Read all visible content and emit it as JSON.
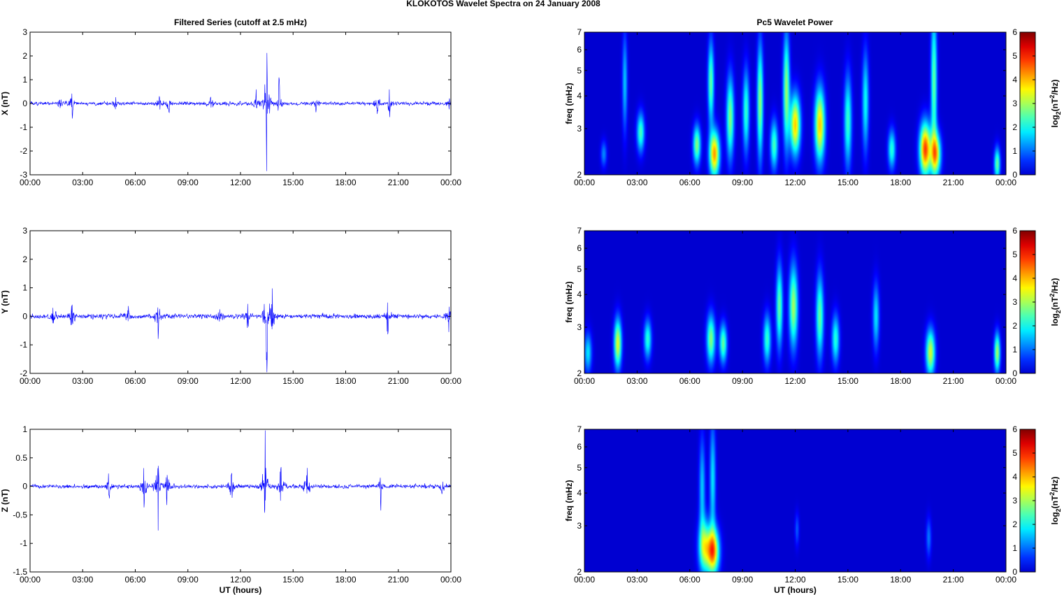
{
  "figure_title": "KLOKOTOS Wavelet Spectra on 24 January   2008",
  "left_title": "Filtered Series (cutoff at 2.5 mHz)",
  "right_title": "Pc5 Wavelet Power",
  "time_ticks": [
    "00:00",
    "03:00",
    "06:00",
    "09:00",
    "12:00",
    "15:00",
    "18:00",
    "21:00",
    "00:00"
  ],
  "xlabel": "UT (hours)",
  "colors": {
    "trace": "#0000ff",
    "axes": "#000000"
  },
  "chart_data": [
    {
      "type": "line",
      "title": "Filtered Series (cutoff at 2.5 mHz)",
      "ylabel": "X (nT)",
      "ylim": [
        -3,
        3
      ],
      "yticks": [
        "3",
        "2",
        "1",
        "0",
        "-1",
        "-2",
        "-3"
      ],
      "xlim_hours": [
        0,
        24
      ],
      "series": [
        {
          "color": "#0000ff"
        }
      ],
      "noise_amplitude": 0.07,
      "events": [
        {
          "t": 1.7,
          "amp": 0.45
        },
        {
          "t": 2.4,
          "amp": 0.75
        },
        {
          "t": 4.9,
          "amp": 0.3
        },
        {
          "t": 7.4,
          "amp": 0.45
        },
        {
          "t": 7.9,
          "amp": 0.4
        },
        {
          "t": 10.3,
          "amp": 0.4
        },
        {
          "t": 12.9,
          "amp": 0.6
        },
        {
          "t": 13.5,
          "amp": 2.8
        },
        {
          "t": 14.2,
          "amp": 1.0
        },
        {
          "t": 16.3,
          "amp": 0.4
        },
        {
          "t": 19.8,
          "amp": 0.4
        },
        {
          "t": 20.5,
          "amp": 0.85
        },
        {
          "t": 23.9,
          "amp": 0.35
        }
      ]
    },
    {
      "type": "line",
      "ylabel": "Y (nT)",
      "ylim": [
        -2,
        3
      ],
      "yticks": [
        "3",
        "2",
        "1",
        "0",
        "-1",
        "-2"
      ],
      "xlim_hours": [
        0,
        24
      ],
      "series": [
        {
          "color": "#0000ff"
        }
      ],
      "noise_amplitude": 0.08,
      "events": [
        {
          "t": 1.3,
          "amp": 0.45
        },
        {
          "t": 2.4,
          "amp": 0.7
        },
        {
          "t": 5.6,
          "amp": 0.3
        },
        {
          "t": 7.3,
          "amp": 0.65
        },
        {
          "t": 10.8,
          "amp": 0.4
        },
        {
          "t": 12.4,
          "amp": 0.55
        },
        {
          "t": 13.5,
          "amp": 2.5
        },
        {
          "t": 13.8,
          "amp": 1.4
        },
        {
          "t": 20.4,
          "amp": 0.7
        },
        {
          "t": 23.9,
          "amp": 0.55
        }
      ]
    },
    {
      "type": "line",
      "ylabel": "Z (nT)",
      "ylim": [
        -1.5,
        1
      ],
      "yticks": [
        "1",
        "0.5",
        "0",
        "-0.5",
        "-1",
        "-1.5"
      ],
      "xlim_hours": [
        0,
        24
      ],
      "series": [
        {
          "color": "#0000ff"
        }
      ],
      "noise_amplitude": 0.035,
      "events": [
        {
          "t": 4.5,
          "amp": 0.25
        },
        {
          "t": 6.5,
          "amp": 0.45
        },
        {
          "t": 7.3,
          "amp": 0.7
        },
        {
          "t": 7.8,
          "amp": 0.45
        },
        {
          "t": 11.5,
          "amp": 0.4
        },
        {
          "t": 13.4,
          "amp": 1.0
        },
        {
          "t": 14.3,
          "amp": 0.5
        },
        {
          "t": 15.8,
          "amp": 0.45
        },
        {
          "t": 20.0,
          "amp": 0.3
        },
        {
          "t": 23.5,
          "amp": 0.2
        }
      ]
    },
    {
      "type": "heatmap",
      "title": "Pc5 Wavelet Power",
      "ylabel": "freq (mHz)",
      "y_scale": "log",
      "ylim": [
        2,
        7
      ],
      "yticks": [
        "7",
        "6",
        "5",
        "4",
        "3",
        "2"
      ],
      "xlim_hours": [
        0,
        24
      ],
      "colorbar_label": "log2(nT^2/Hz)",
      "clim": [
        0,
        6
      ],
      "cbar_ticks": [
        "6",
        "5",
        "4",
        "3",
        "2",
        "1",
        "0"
      ],
      "colormap": "jet",
      "blobs": [
        {
          "t": 1.1,
          "f": 2.4,
          "p": 1.2,
          "w": 0.12,
          "fs": 0.08
        },
        {
          "t": 2.3,
          "f": 4.5,
          "p": 1.6,
          "w": 0.1,
          "fs": 0.3
        },
        {
          "t": 3.2,
          "f": 2.9,
          "p": 2.4,
          "w": 0.15,
          "fs": 0.12
        },
        {
          "t": 6.4,
          "f": 2.6,
          "p": 2.8,
          "w": 0.15,
          "fs": 0.12
        },
        {
          "t": 7.2,
          "f": 4.5,
          "p": 2.6,
          "w": 0.12,
          "fs": 0.25
        },
        {
          "t": 7.4,
          "f": 2.4,
          "p": 4.2,
          "w": 0.2,
          "fs": 0.14
        },
        {
          "t": 8.3,
          "f": 3.3,
          "p": 2.8,
          "w": 0.15,
          "fs": 0.25
        },
        {
          "t": 9.2,
          "f": 3.5,
          "p": 2.3,
          "w": 0.13,
          "fs": 0.25
        },
        {
          "t": 10.0,
          "f": 3.8,
          "p": 2.9,
          "w": 0.12,
          "fs": 0.35
        },
        {
          "t": 10.8,
          "f": 2.6,
          "p": 2.4,
          "w": 0.15,
          "fs": 0.15
        },
        {
          "t": 11.5,
          "f": 4.2,
          "p": 2.9,
          "w": 0.13,
          "fs": 0.35
        },
        {
          "t": 12.0,
          "f": 3.1,
          "p": 3.9,
          "w": 0.2,
          "fs": 0.18
        },
        {
          "t": 13.4,
          "f": 3.1,
          "p": 3.9,
          "w": 0.2,
          "fs": 0.22
        },
        {
          "t": 15.0,
          "f": 3.2,
          "p": 2.3,
          "w": 0.15,
          "fs": 0.28
        },
        {
          "t": 16.0,
          "f": 3.8,
          "p": 2.0,
          "w": 0.13,
          "fs": 0.3
        },
        {
          "t": 17.5,
          "f": 2.5,
          "p": 2.2,
          "w": 0.15,
          "fs": 0.12
        },
        {
          "t": 19.4,
          "f": 2.5,
          "p": 4.8,
          "w": 0.22,
          "fs": 0.16
        },
        {
          "t": 19.9,
          "f": 4.5,
          "p": 2.6,
          "w": 0.12,
          "fs": 0.45
        },
        {
          "t": 20.0,
          "f": 2.4,
          "p": 3.8,
          "w": 0.2,
          "fs": 0.13
        },
        {
          "t": 23.5,
          "f": 2.2,
          "p": 2.6,
          "w": 0.12,
          "fs": 0.1
        }
      ]
    },
    {
      "type": "heatmap",
      "ylabel": "freq (mHz)",
      "y_scale": "log",
      "ylim": [
        2,
        7
      ],
      "yticks": [
        "7",
        "6",
        "5",
        "4",
        "3",
        "2"
      ],
      "xlim_hours": [
        0,
        24
      ],
      "colorbar_label": "log2(nT^2/Hz)",
      "clim": [
        0,
        6
      ],
      "cbar_ticks": [
        "6",
        "5",
        "4",
        "3",
        "2",
        "1",
        "0"
      ],
      "colormap": "jet",
      "blobs": [
        {
          "t": 0.2,
          "f": 2.4,
          "p": 1.8,
          "w": 0.15,
          "fs": 0.12
        },
        {
          "t": 1.9,
          "f": 2.6,
          "p": 3.4,
          "w": 0.15,
          "fs": 0.15
        },
        {
          "t": 3.6,
          "f": 2.7,
          "p": 2.2,
          "w": 0.15,
          "fs": 0.12
        },
        {
          "t": 7.2,
          "f": 2.7,
          "p": 2.8,
          "w": 0.17,
          "fs": 0.15
        },
        {
          "t": 7.9,
          "f": 2.6,
          "p": 2.6,
          "w": 0.15,
          "fs": 0.12
        },
        {
          "t": 10.4,
          "f": 2.7,
          "p": 2.3,
          "w": 0.15,
          "fs": 0.15
        },
        {
          "t": 11.1,
          "f": 3.6,
          "p": 2.6,
          "w": 0.13,
          "fs": 0.25
        },
        {
          "t": 11.9,
          "f": 3.6,
          "p": 3.0,
          "w": 0.17,
          "fs": 0.25
        },
        {
          "t": 13.4,
          "f": 3.3,
          "p": 2.6,
          "w": 0.15,
          "fs": 0.25
        },
        {
          "t": 14.3,
          "f": 2.7,
          "p": 2.2,
          "w": 0.15,
          "fs": 0.15
        },
        {
          "t": 16.6,
          "f": 3.3,
          "p": 1.8,
          "w": 0.13,
          "fs": 0.2
        },
        {
          "t": 19.7,
          "f": 2.4,
          "p": 3.3,
          "w": 0.18,
          "fs": 0.14
        },
        {
          "t": 23.5,
          "f": 2.4,
          "p": 3.0,
          "w": 0.12,
          "fs": 0.12
        }
      ]
    },
    {
      "type": "heatmap",
      "ylabel": "freq (mHz)",
      "y_scale": "log",
      "ylim": [
        2,
        7
      ],
      "yticks": [
        "7",
        "6",
        "5",
        "4",
        "3",
        "2"
      ],
      "xlim_hours": [
        0,
        24
      ],
      "colorbar_label": "log2(nT^2/Hz)",
      "clim": [
        0,
        6
      ],
      "cbar_ticks": [
        "6",
        "5",
        "4",
        "3",
        "2",
        "1",
        "0"
      ],
      "colormap": "jet",
      "blobs": [
        {
          "t": 6.7,
          "f": 4.2,
          "p": 1.6,
          "w": 0.12,
          "fs": 0.3
        },
        {
          "t": 6.8,
          "f": 2.5,
          "p": 2.8,
          "w": 0.22,
          "fs": 0.16
        },
        {
          "t": 7.3,
          "f": 2.4,
          "p": 4.5,
          "w": 0.25,
          "fs": 0.14
        },
        {
          "t": 7.3,
          "f": 4.5,
          "p": 1.8,
          "w": 0.12,
          "fs": 0.35
        },
        {
          "t": 12.1,
          "f": 2.9,
          "p": 0.9,
          "w": 0.08,
          "fs": 0.1
        },
        {
          "t": 19.6,
          "f": 2.7,
          "p": 1.1,
          "w": 0.1,
          "fs": 0.12
        }
      ]
    }
  ]
}
